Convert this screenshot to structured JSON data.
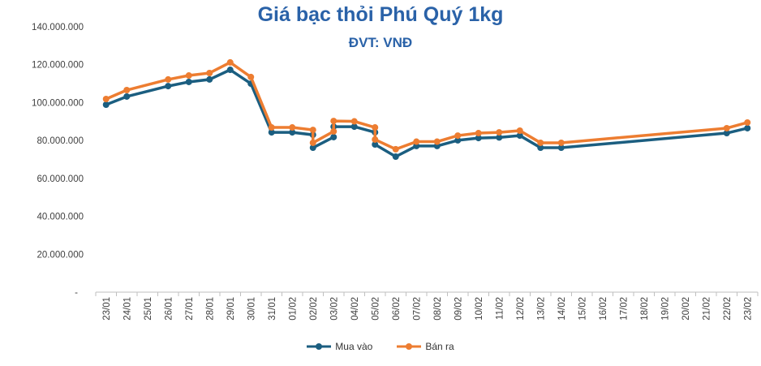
{
  "chart_data": {
    "type": "line",
    "title": "Giá bạc thỏi Phú Quý 1kg",
    "subtitle": "ĐVT: VNĐ",
    "ylim": [
      0,
      140000000
    ],
    "yticks": [
      "-",
      "20.000.000",
      "40.000.000",
      "60.000.000",
      "80.000.000",
      "100.000.000",
      "120.000.000",
      "140.000.000"
    ],
    "categories": [
      "23/01",
      "24/01",
      "25/01",
      "26/01",
      "27/01",
      "28/01",
      "29/01",
      "30/01",
      "31/01",
      "01/02",
      "02/02",
      "03/02",
      "04/02",
      "05/02",
      "06/02",
      "07/02",
      "08/02",
      "09/02",
      "10/02",
      "11/02",
      "12/02",
      "13/02",
      "14/02",
      "15/02",
      "16/02",
      "17/02",
      "18/02",
      "19/02",
      "20/02",
      "21/02",
      "22/02",
      "23/02"
    ],
    "points": [
      {
        "date": "23/01",
        "mua": 98900000,
        "ban": 101900000
      },
      {
        "date": "24/01",
        "mua": 103200000,
        "ban": 106600000
      },
      {
        "date": "26/01",
        "mua": 108700000,
        "ban": 112200000
      },
      {
        "date": "27/01",
        "mua": 110900000,
        "ban": 114300000
      },
      {
        "date": "28/01",
        "mua": 112200000,
        "ban": 115600000
      },
      {
        "date": "29/01",
        "mua": 117300000,
        "ban": 121200000
      },
      {
        "date": "30/01",
        "mua": 110000000,
        "ban": 113500000
      },
      {
        "date": "31/01",
        "mua": 84300000,
        "ban": 86900000
      },
      {
        "date": "01/02",
        "mua": 84300000,
        "ban": 86900000
      },
      {
        "date": "02/02",
        "mua": 83000000,
        "ban": 85600000
      },
      {
        "date": "02/02",
        "mua": 76200000,
        "ban": 78800000
      },
      {
        "date": "03/02",
        "mua": 81800000,
        "ban": 84800000
      },
      {
        "date": "03/02",
        "mua": 87300000,
        "ban": 90300000
      },
      {
        "date": "04/02",
        "mua": 87300000,
        "ban": 90100000
      },
      {
        "date": "05/02",
        "mua": 84300000,
        "ban": 86900000
      },
      {
        "date": "05/02",
        "mua": 77900000,
        "ban": 80500000
      },
      {
        "date": "06/02",
        "mua": 71500000,
        "ban": 75400000
      },
      {
        "date": "07/02",
        "mua": 77100000,
        "ban": 79400000
      },
      {
        "date": "08/02",
        "mua": 77100000,
        "ban": 79400000
      },
      {
        "date": "09/02",
        "mua": 80100000,
        "ban": 82600000
      },
      {
        "date": "10/02",
        "mua": 81300000,
        "ban": 83900000
      },
      {
        "date": "11/02",
        "mua": 81600000,
        "ban": 84300000
      },
      {
        "date": "12/02",
        "mua": 82600000,
        "ban": 85200000
      },
      {
        "date": "13/02",
        "mua": 76200000,
        "ban": 78800000
      },
      {
        "date": "14/02",
        "mua": 76200000,
        "ban": 78800000
      },
      {
        "date": "22/02",
        "mua": 83900000,
        "ban": 86500000
      },
      {
        "date": "23/02",
        "mua": 86500000,
        "ban": 89500000
      }
    ],
    "series": [
      {
        "key": "mua",
        "name": "Mua vào",
        "color": "#1b5e80"
      },
      {
        "key": "ban",
        "name": "Bán ra",
        "color": "#ed7d31"
      }
    ],
    "legend": "bottom",
    "grid": false
  }
}
